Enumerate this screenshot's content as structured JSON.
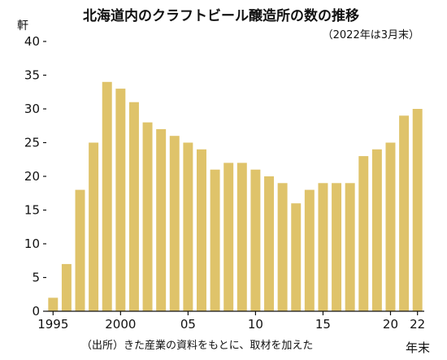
{
  "chart_data": {
    "type": "bar",
    "title": "北海道内のクラフトビール醸造所の数の推移",
    "subtitle": "（2022年は3月末）",
    "ylabel": "軒",
    "xlabel": "年末",
    "source": "（出所）きた産業の資料をもとに、取材を加えた",
    "ylim": [
      0,
      40
    ],
    "yticks": [
      0,
      5,
      10,
      15,
      20,
      25,
      30,
      35,
      40
    ],
    "categories": [
      1995,
      1996,
      1997,
      1998,
      1999,
      2000,
      2001,
      2002,
      2003,
      2004,
      2005,
      2006,
      2007,
      2008,
      2009,
      2010,
      2011,
      2012,
      2013,
      2014,
      2015,
      2016,
      2017,
      2018,
      2019,
      2020,
      2021,
      2022
    ],
    "values": [
      2,
      7,
      18,
      25,
      34,
      33,
      31,
      28,
      27,
      26,
      25,
      24,
      21,
      22,
      22,
      21,
      20,
      19,
      16,
      18,
      19,
      19,
      19,
      23,
      24,
      25,
      29,
      30
    ],
    "xtick_labels": [
      {
        "label": "1995",
        "index": 0
      },
      {
        "label": "2000",
        "index": 5
      },
      {
        "label": "05",
        "index": 10
      },
      {
        "label": "10",
        "index": 15
      },
      {
        "label": "15",
        "index": 20
      },
      {
        "label": "20",
        "index": 25
      },
      {
        "label": "22",
        "index": 27
      }
    ],
    "bar_color": "#dfc36a",
    "grid": false
  }
}
